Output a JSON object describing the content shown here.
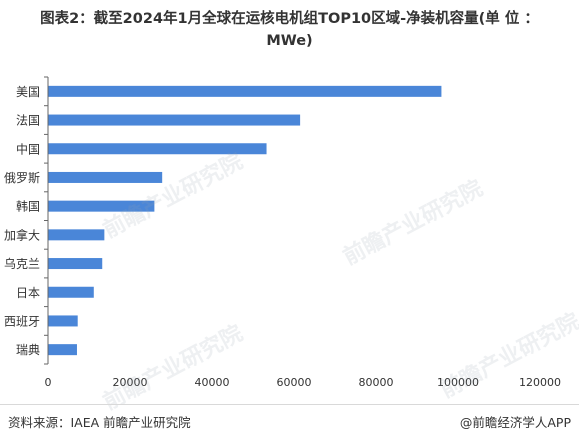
{
  "title_line1": "图表2：截至2024年1月全球在运核电机组TOP10区域-净装机容量(单 位 ：",
  "title_line2": "MWe)",
  "source": "资料来源：IAEA 前瞻产业研究院",
  "credit": "@前瞻经济学人APP",
  "watermark": "前瞻产业研究院",
  "colors": {
    "bar": "#4a86d8",
    "axis": "#666666",
    "text": "#333333"
  },
  "chart_data": {
    "type": "bar",
    "orientation": "horizontal",
    "title": "图表2：截至2024年1月全球在运核电机组TOP10区域-净装机容量(单 位 ：MWe)",
    "categories": [
      "美国",
      "法国",
      "中国",
      "俄罗斯",
      "韩国",
      "加拿大",
      "乌克兰",
      "日本",
      "西班牙",
      "瑞典"
    ],
    "values": [
      95835,
      61370,
      53181,
      27727,
      25825,
      13624,
      13107,
      11046,
      7123,
      6944
    ],
    "xlim": [
      0,
      120000
    ],
    "xticks": [
      0,
      20000,
      40000,
      60000,
      80000,
      100000,
      120000
    ],
    "xtick_labels": [
      "0",
      "20000",
      "40000",
      "60000",
      "80000",
      "100000",
      "120000"
    ],
    "grid": false
  }
}
